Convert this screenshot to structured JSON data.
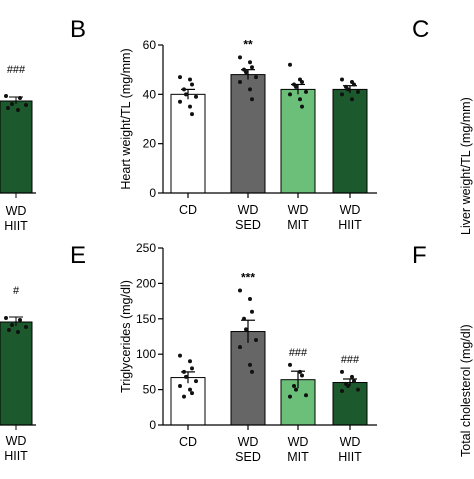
{
  "colors": {
    "CD": "#ffffff",
    "WD SED": "#666666",
    "WD MIT": "#6cbf78",
    "WD HIIT": "#1c5a2e",
    "axis": "#000000",
    "dot": "#111111"
  },
  "partial_left": {
    "top": {
      "sig": "###",
      "category": [
        "WD",
        "HIIT"
      ]
    },
    "bottom": {
      "sig": "#",
      "category": [
        "WD",
        "HIIT"
      ]
    }
  },
  "panels": {
    "B": {
      "letter": "B",
      "ylabel": "Heart weight/TL (mg/mm)"
    },
    "C": {
      "letter": "C",
      "ylabel": "Liver weight/TL (mg/mm)"
    },
    "E": {
      "letter": "E",
      "ylabel": "Triglycerides (mg/dl)"
    },
    "F": {
      "letter": "F",
      "ylabel": "Total cholesterol (mg/dl)"
    }
  },
  "chart_data": [
    {
      "panel": "B",
      "type": "bar",
      "categories": [
        [
          "CD"
        ],
        [
          "WD",
          "SED"
        ],
        [
          "WD",
          "MIT"
        ],
        [
          "WD",
          "HIIT"
        ]
      ],
      "values": [
        40,
        48,
        42,
        42
      ],
      "errors": [
        2,
        2,
        2,
        1.5
      ],
      "points": [
        [
          47,
          46,
          44,
          42,
          40,
          39,
          37,
          35,
          32
        ],
        [
          55,
          53,
          51,
          50,
          49,
          47,
          45,
          42,
          38
        ],
        [
          52,
          46,
          45,
          44,
          43,
          41,
          40,
          38,
          35
        ],
        [
          46,
          45,
          44,
          43,
          42,
          41,
          40,
          38
        ]
      ],
      "significance": [
        "",
        "**",
        "",
        ""
      ],
      "ylabel": "Heart weight/TL (mg/mm)",
      "ylim": [
        0,
        60
      ],
      "yticks": [
        0,
        20,
        40,
        60
      ]
    },
    {
      "panel": "E",
      "type": "bar",
      "categories": [
        [
          "CD"
        ],
        [
          "WD",
          "SED"
        ],
        [
          "WD",
          "MIT"
        ],
        [
          "WD",
          "HIIT"
        ]
      ],
      "values": [
        67,
        132,
        64,
        60
      ],
      "errors": [
        8,
        16,
        12,
        5
      ],
      "points": [
        [
          98,
          90,
          80,
          75,
          68,
          62,
          55,
          50,
          45,
          40
        ],
        [
          190,
          178,
          160,
          150,
          135,
          120,
          110,
          85,
          75
        ],
        [
          85,
          75,
          70,
          55,
          50,
          42,
          40
        ],
        [
          75,
          68,
          62,
          58,
          55,
          50,
          48
        ]
      ],
      "significance": [
        "",
        "***",
        "###",
        "###"
      ],
      "ylabel": "Triglycerides (mg/dl)",
      "ylim": [
        0,
        250
      ],
      "yticks": [
        0,
        50,
        100,
        150,
        200,
        250
      ]
    }
  ]
}
